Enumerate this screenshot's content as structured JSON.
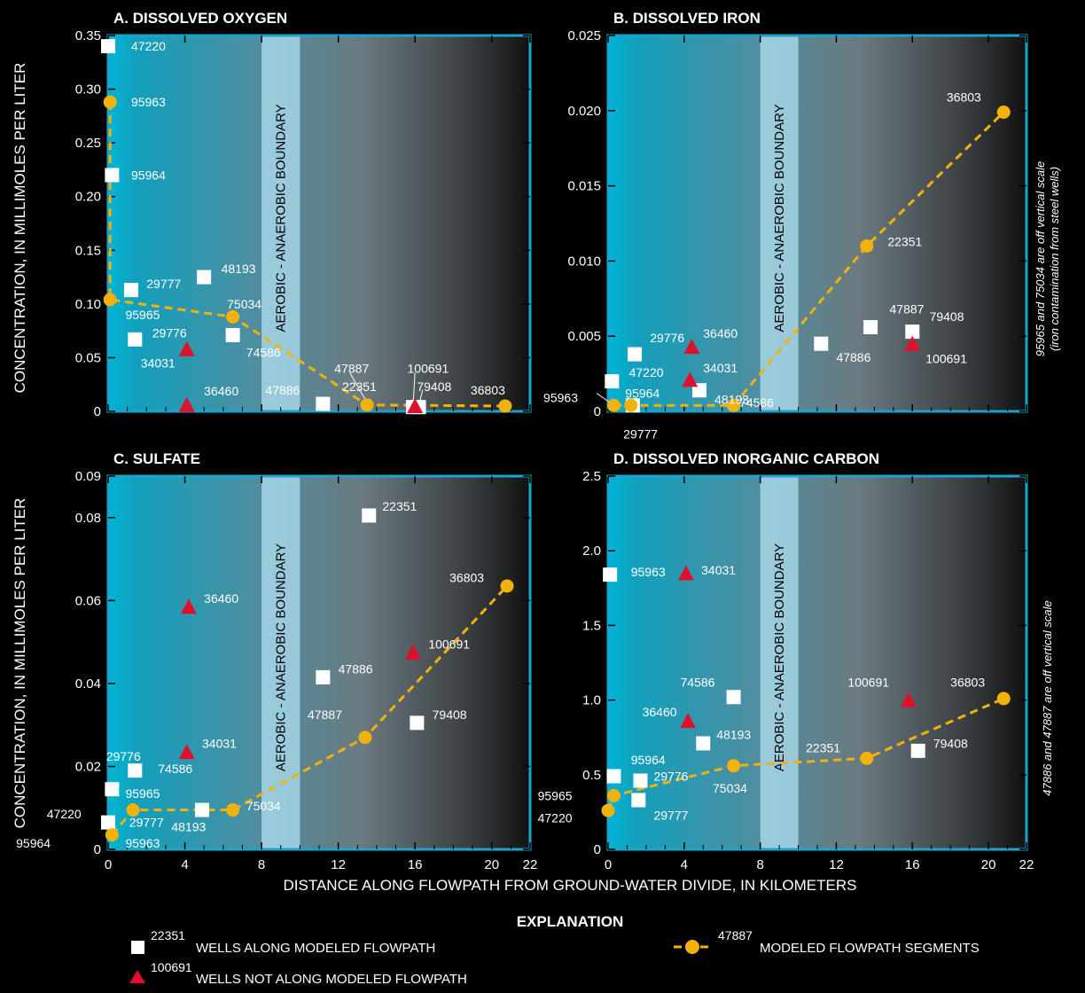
{
  "y_label": "CONCENTRATION, IN MILLIMOLES PER LITER",
  "x_label": "DISTANCE ALONG FLOWPATH FROM GROUND-WATER DIVIDE, IN KILOMETERS",
  "boundary_label": "AEROBIC - ANAEROBIC BOUNDARY",
  "boundary_range": [
    8,
    10
  ],
  "colors": {
    "frame": "#1aa6cc",
    "boundary": "#a6d6e6",
    "square": "#ffffff",
    "triangle": "#e0102a",
    "modeled": "#f2b20c"
  },
  "explanation": {
    "title": "EXPLANATION",
    "items": [
      {
        "symbol": "square",
        "id": "22351",
        "text": "WELLS ALONG MODELED FLOWPATH"
      },
      {
        "symbol": "triangle",
        "id": "100691",
        "text": "WELLS NOT ALONG MODELED FLOWPATH"
      },
      {
        "symbol": "line-circle",
        "id": "47887",
        "text": "MODELED FLOWPATH SEGMENTS"
      }
    ]
  },
  "chart_data": [
    {
      "type": "scatter",
      "title": "A. DISSOLVED OXYGEN",
      "xlim": [
        0,
        22
      ],
      "ylim": [
        0,
        0.35
      ],
      "xticks": [
        "0",
        "4",
        "8",
        "12",
        "16",
        "20",
        "22"
      ],
      "xtick_values": [
        0,
        4,
        8,
        12,
        16,
        20,
        22
      ],
      "yticks": [
        "0",
        "0.05",
        "0.10",
        "0.15",
        "0.20",
        "0.25",
        "0.30",
        "0.35"
      ],
      "ytick_values": [
        0,
        0.05,
        0.1,
        0.15,
        0.2,
        0.25,
        0.3,
        0.35
      ],
      "squares": [
        {
          "id": "47220",
          "x": 0.0,
          "y": 0.34
        },
        {
          "id": "95964",
          "x": 0.2,
          "y": 0.22
        },
        {
          "id": "29777",
          "x": 1.2,
          "y": 0.113
        },
        {
          "id": "29776",
          "x": 1.4,
          "y": 0.067
        },
        {
          "id": "48193",
          "x": 5.0,
          "y": 0.125
        },
        {
          "id": "74586",
          "x": 6.5,
          "y": 0.071
        },
        {
          "id": "47886",
          "x": 11.2,
          "y": 0.007
        },
        {
          "id": "47887",
          "x": 15.9,
          "y": 0.004
        },
        {
          "id": "79408",
          "x": 16.2,
          "y": 0.004
        }
      ],
      "triangles": [
        {
          "id": "34031",
          "x": 4.1,
          "y": 0.058
        },
        {
          "id": "36460",
          "x": 4.1,
          "y": 0.006
        },
        {
          "id": "100691",
          "x": 16.0,
          "y": 0.005
        }
      ],
      "modeled": [
        {
          "id": "95963",
          "x": 0.1,
          "y": 0.288
        },
        {
          "id": "95965",
          "x": 0.1,
          "y": 0.104
        },
        {
          "id": "75034",
          "x": 6.5,
          "y": 0.088
        },
        {
          "id": "22351",
          "x": 13.5,
          "y": 0.006
        },
        {
          "id": "36803",
          "x": 20.7,
          "y": 0.005
        }
      ],
      "labels": [
        {
          "text": "47220",
          "x": 1.2,
          "y": 0.34
        },
        {
          "text": "95963",
          "x": 1.2,
          "y": 0.288
        },
        {
          "text": "95964",
          "x": 1.2,
          "y": 0.22
        },
        {
          "text": "29777",
          "x": 2.0,
          "y": 0.119
        },
        {
          "text": "48193",
          "x": 5.9,
          "y": 0.133
        },
        {
          "text": "95965",
          "x": 0.9,
          "y": 0.09
        },
        {
          "text": "75034",
          "x": 6.2,
          "y": 0.1
        },
        {
          "text": "29776",
          "x": 2.3,
          "y": 0.073
        },
        {
          "text": "74586",
          "x": 7.2,
          "y": 0.055
        },
        {
          "text": "34031",
          "x": 1.7,
          "y": 0.045
        },
        {
          "text": "47887",
          "x": 11.8,
          "y": 0.04
        },
        {
          "text": "100691",
          "x": 15.6,
          "y": 0.04
        },
        {
          "text": "79408",
          "x": 16.1,
          "y": 0.023
        },
        {
          "text": "22351",
          "x": 12.2,
          "y": 0.023
        },
        {
          "text": "36460",
          "x": 5.0,
          "y": 0.019
        },
        {
          "text": "47886",
          "x": 8.2,
          "y": 0.02
        },
        {
          "text": "36803",
          "x": 18.9,
          "y": 0.02
        }
      ],
      "leaders": [
        {
          "from": [
            12.6,
            0.036
          ],
          "to": [
            13.5,
            0.008
          ]
        },
        {
          "from": [
            16.0,
            0.036
          ],
          "to": [
            15.9,
            0.006
          ]
        },
        {
          "from": [
            16.4,
            0.02
          ],
          "to": [
            16.2,
            0.006
          ]
        }
      ]
    },
    {
      "type": "scatter",
      "title": "B. DISSOLVED IRON",
      "xlim": [
        0,
        22
      ],
      "ylim": [
        0,
        0.025
      ],
      "xticks": [
        "0",
        "4",
        "8",
        "12",
        "16",
        "20",
        "22"
      ],
      "xtick_values": [
        0,
        4,
        8,
        12,
        16,
        20,
        22
      ],
      "yticks": [
        "0",
        "0.005",
        "0.010",
        "0.015",
        "0.020",
        "0.025"
      ],
      "ytick_values": [
        0,
        0.005,
        0.01,
        0.015,
        0.02,
        0.025
      ],
      "note": [
        "95965 and 75034 are off vertical scale",
        "(iron contamination from steel wells)"
      ],
      "squares": [
        {
          "id": "95964",
          "x": 0.2,
          "y": 0.002
        },
        {
          "id": "29777",
          "x": 1.3,
          "y": 0.0004
        },
        {
          "id": "29776",
          "x": 1.4,
          "y": 0.0038
        },
        {
          "id": "48193",
          "x": 4.8,
          "y": 0.0014
        },
        {
          "id": "47886",
          "x": 11.2,
          "y": 0.0045
        },
        {
          "id": "47887",
          "x": 13.8,
          "y": 0.0056
        },
        {
          "id": "79408",
          "x": 16.0,
          "y": 0.0053
        }
      ],
      "triangles": [
        {
          "id": "36460",
          "x": 4.4,
          "y": 0.0043
        },
        {
          "id": "34031",
          "x": 4.3,
          "y": 0.0021
        },
        {
          "id": "100691",
          "x": 16.0,
          "y": 0.0045
        }
      ],
      "modeled": [
        {
          "id": "95963",
          "x": 0.3,
          "y": 0.0004
        },
        {
          "id": "47220",
          "x": 1.2,
          "y": 0.0004
        },
        {
          "id": "74586",
          "x": 6.6,
          "y": 0.0004
        },
        {
          "id": "22351",
          "x": 13.6,
          "y": 0.011
        },
        {
          "id": "36803",
          "x": 20.8,
          "y": 0.0199
        }
      ],
      "labels": [
        {
          "text": "36803",
          "x": 17.8,
          "y": 0.0209
        },
        {
          "text": "22351",
          "x": 14.7,
          "y": 0.0113
        },
        {
          "text": "47887",
          "x": 14.8,
          "y": 0.0068
        },
        {
          "text": "79408",
          "x": 16.9,
          "y": 0.0063
        },
        {
          "text": "36460",
          "x": 5.0,
          "y": 0.0052
        },
        {
          "text": "47886",
          "x": 12.0,
          "y": 0.0036
        },
        {
          "text": "100691",
          "x": 16.7,
          "y": 0.0035
        },
        {
          "text": "29776",
          "x": 2.2,
          "y": 0.0049
        },
        {
          "text": "47220",
          "x": 1.1,
          "y": 0.0026
        },
        {
          "text": "34031",
          "x": 5.0,
          "y": 0.0029
        },
        {
          "text": "48193",
          "x": 5.6,
          "y": 0.0008
        },
        {
          "text": "95963",
          "x": -3.4,
          "y": 0.0009
        },
        {
          "text": "95964",
          "x": 0.9,
          "y": 0.0012
        },
        {
          "text": "74586",
          "x": 6.9,
          "y": 0.0006
        },
        {
          "text": "29777",
          "x": 0.8,
          "y": -0.0015
        }
      ],
      "leaders": [
        {
          "from": [
            -0.6,
            0.0012
          ],
          "to": [
            0.2,
            0.0005
          ]
        }
      ]
    },
    {
      "type": "scatter",
      "title": "C. SULFATE",
      "xlim": [
        0,
        22
      ],
      "ylim": [
        0,
        0.09
      ],
      "xticks": [
        "0",
        "4",
        "8",
        "12",
        "16",
        "20",
        "22"
      ],
      "xtick_values": [
        0,
        4,
        8,
        12,
        16,
        20,
        22
      ],
      "yticks": [
        "0",
        "0.02",
        "0.04",
        "0.06",
        "0.08",
        "0.09"
      ],
      "ytick_values": [
        0,
        0.02,
        0.04,
        0.06,
        0.08,
        0.09
      ],
      "squares": [
        {
          "id": "95965",
          "x": 0.2,
          "y": 0.0145
        },
        {
          "id": "47220",
          "x": 0.0,
          "y": 0.0065
        },
        {
          "id": "29776",
          "x": 1.4,
          "y": 0.019
        },
        {
          "id": "48193",
          "x": 4.9,
          "y": 0.0095
        },
        {
          "id": "47886",
          "x": 11.2,
          "y": 0.0415
        },
        {
          "id": "22351",
          "x": 13.6,
          "y": 0.0805
        },
        {
          "id": "79408",
          "x": 16.1,
          "y": 0.0305
        }
      ],
      "triangles": [
        {
          "id": "36460",
          "x": 4.2,
          "y": 0.0585
        },
        {
          "id": "34031",
          "x": 4.1,
          "y": 0.0235
        },
        {
          "id": "100691",
          "x": 15.9,
          "y": 0.0475
        }
      ],
      "modeled": [
        {
          "id": "95963",
          "x": 0.2,
          "y": 0.0035
        },
        {
          "id": "29777",
          "x": 1.3,
          "y": 0.0095
        },
        {
          "id": "75034",
          "x": 6.5,
          "y": 0.0095
        },
        {
          "id": "47887",
          "x": 13.4,
          "y": 0.027
        },
        {
          "id": "36803",
          "x": 20.8,
          "y": 0.0635
        }
      ],
      "labels": [
        {
          "text": "22351",
          "x": 14.3,
          "y": 0.0827
        },
        {
          "text": "36803",
          "x": 17.8,
          "y": 0.0655
        },
        {
          "text": "36460",
          "x": 5.0,
          "y": 0.0605
        },
        {
          "text": "100691",
          "x": 16.7,
          "y": 0.0495
        },
        {
          "text": "47886",
          "x": 12.0,
          "y": 0.0435
        },
        {
          "text": "47887",
          "x": 10.4,
          "y": 0.0325
        },
        {
          "text": "79408",
          "x": 16.9,
          "y": 0.0325
        },
        {
          "text": "34031",
          "x": 4.9,
          "y": 0.0255
        },
        {
          "text": "29776",
          "x": -0.1,
          "y": 0.0225
        },
        {
          "text": "74586",
          "x": 2.6,
          "y": 0.0195
        },
        {
          "text": "95965",
          "x": 0.9,
          "y": 0.0135
        },
        {
          "text": "75034",
          "x": 7.2,
          "y": 0.0105
        },
        {
          "text": "47220",
          "x": -3.2,
          "y": 0.0085
        },
        {
          "text": "29777",
          "x": 1.1,
          "y": 0.0065
        },
        {
          "text": "48193",
          "x": 3.3,
          "y": 0.0055
        },
        {
          "text": "95964",
          "x": -4.8,
          "y": 0.0015
        },
        {
          "text": "95963",
          "x": 0.9,
          "y": 0.0015
        }
      ],
      "leaders": []
    },
    {
      "type": "scatter",
      "title": "D. DISSOLVED INORGANIC CARBON",
      "xlim": [
        0,
        22
      ],
      "ylim": [
        0,
        2.5
      ],
      "xticks": [
        "0",
        "4",
        "8",
        "12",
        "16",
        "20",
        "22"
      ],
      "xtick_values": [
        0,
        4,
        8,
        12,
        16,
        20,
        22
      ],
      "yticks": [
        "0",
        "0.5",
        "1.0",
        "1.5",
        "2.0",
        "2.5"
      ],
      "ytick_values": [
        0,
        0.5,
        1.0,
        1.5,
        2.0,
        2.5
      ],
      "note": [
        "47886 and 47887 are off vertical scale"
      ],
      "squares": [
        {
          "id": "95963",
          "x": 0.1,
          "y": 1.84
        },
        {
          "id": "95964",
          "x": 0.3,
          "y": 0.49
        },
        {
          "id": "29776",
          "x": 1.7,
          "y": 0.46
        },
        {
          "id": "29777",
          "x": 1.6,
          "y": 0.33
        },
        {
          "id": "74586",
          "x": 6.6,
          "y": 1.02
        },
        {
          "id": "48193",
          "x": 5.0,
          "y": 0.71
        },
        {
          "id": "79408",
          "x": 16.3,
          "y": 0.66
        }
      ],
      "triangles": [
        {
          "id": "34031",
          "x": 4.1,
          "y": 1.85
        },
        {
          "id": "36460",
          "x": 4.2,
          "y": 0.86
        },
        {
          "id": "100691",
          "x": 15.8,
          "y": 1.0
        }
      ],
      "modeled": [
        {
          "id": "47220",
          "x": 0.0,
          "y": 0.26
        },
        {
          "id": "95965",
          "x": 0.3,
          "y": 0.36
        },
        {
          "id": "75034",
          "x": 6.6,
          "y": 0.56
        },
        {
          "id": "22351",
          "x": 13.6,
          "y": 0.61
        },
        {
          "id": "36803",
          "x": 20.8,
          "y": 1.01
        }
      ],
      "labels": [
        {
          "text": "95963",
          "x": 1.2,
          "y": 1.86
        },
        {
          "text": "34031",
          "x": 4.9,
          "y": 1.87
        },
        {
          "text": "74586",
          "x": 3.8,
          "y": 1.12
        },
        {
          "text": "100691",
          "x": 12.6,
          "y": 1.12
        },
        {
          "text": "36803",
          "x": 18.0,
          "y": 1.12
        },
        {
          "text": "36460",
          "x": 1.8,
          "y": 0.92
        },
        {
          "text": "48193",
          "x": 5.7,
          "y": 0.77
        },
        {
          "text": "22351",
          "x": 10.4,
          "y": 0.68
        },
        {
          "text": "79408",
          "x": 17.1,
          "y": 0.71
        },
        {
          "text": "95964",
          "x": 1.2,
          "y": 0.6
        },
        {
          "text": "29776",
          "x": 2.4,
          "y": 0.49
        },
        {
          "text": "75034",
          "x": 5.5,
          "y": 0.41
        },
        {
          "text": "95965",
          "x": -3.7,
          "y": 0.36
        },
        {
          "text": "29777",
          "x": 2.4,
          "y": 0.23
        },
        {
          "text": "47220",
          "x": -3.7,
          "y": 0.21
        }
      ],
      "leaders": []
    }
  ]
}
